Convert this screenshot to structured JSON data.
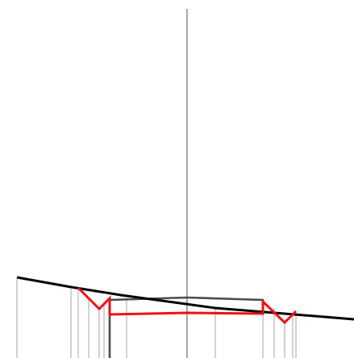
{
  "colors": {
    "background": "#ffffff",
    "vertical_lines": "#b0b0b0",
    "center_line": "#a8a8a8",
    "ground_line": "#000000",
    "gray_structure": "#505050",
    "red_structure": "#ee1111"
  }
}
